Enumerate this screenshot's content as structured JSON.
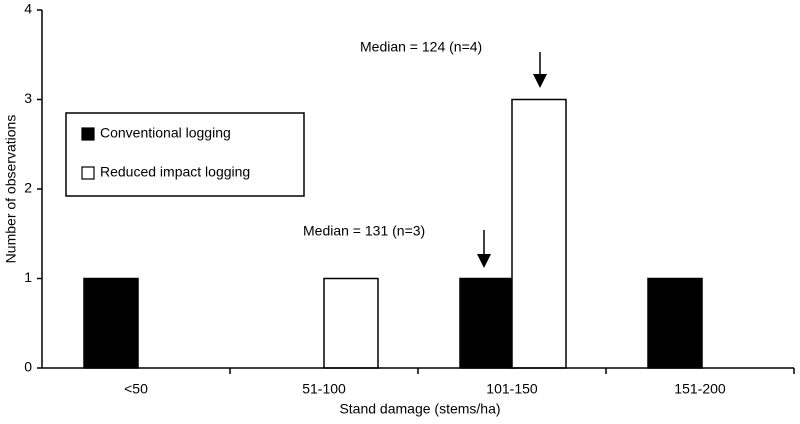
{
  "chart_data": {
    "type": "bar",
    "x_label": "Stand damage (stems/ha)",
    "y_label": "Number of observations",
    "categories": [
      "<50",
      "51-100",
      "101-150",
      "151-200"
    ],
    "series": [
      {
        "name": "Conventional logging",
        "color": "#000000",
        "values": [
          1,
          0,
          1,
          1
        ]
      },
      {
        "name": "Reduced impact logging",
        "color": "#ffffff",
        "values": [
          0,
          1,
          3,
          0
        ]
      }
    ],
    "ylim": [
      0,
      4
    ],
    "yticks": [
      0,
      1,
      2,
      3,
      4
    ],
    "annotations": [
      {
        "text": "Median = 124 (n=4)"
      },
      {
        "text": "Median = 131 (n=3)"
      }
    ]
  }
}
